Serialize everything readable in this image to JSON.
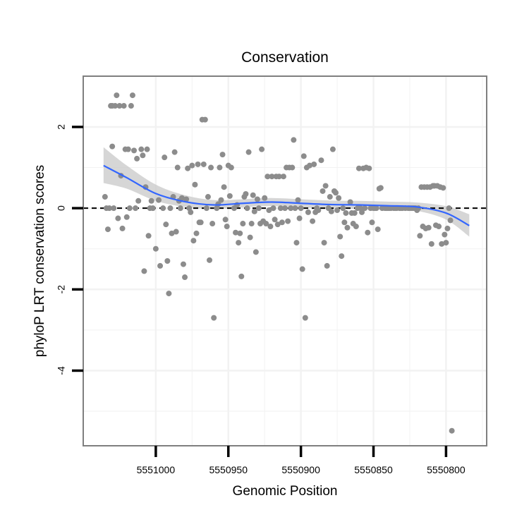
{
  "chart_data": {
    "type": "scatter",
    "title": "Conservation",
    "xlabel": "Genomic Position",
    "ylabel": "phyloP LRT conservation scores",
    "x_reversed": true,
    "xlim": [
      5551050,
      5550772
    ],
    "ylim": [
      -5.85,
      3.25
    ],
    "x_ticks": [
      5551000,
      5550950,
      5550900,
      5550850,
      5550800
    ],
    "x_tick_labels": [
      "5551000",
      "5550950",
      "5550900",
      "5550850",
      "5550800"
    ],
    "y_ticks": [
      2,
      0,
      -2,
      -4
    ],
    "y_tick_labels": [
      "2",
      "0",
      "-2",
      "-4"
    ],
    "reference_line": {
      "y": 0,
      "style": "dashed"
    },
    "colors": {
      "points": "#8c8c8c",
      "smooth_line": "#3366ff",
      "confidence_band": "#c8c8c8",
      "panel_border": "#7f7f7f",
      "grid": "#f2f2f2"
    },
    "smooth": {
      "x": [
        5551036,
        5551020,
        5551000,
        5550980,
        5550960,
        5550940,
        5550920,
        5550900,
        5550880,
        5550860,
        5550840,
        5550820,
        5550800,
        5550784
      ],
      "y": [
        1.05,
        0.75,
        0.36,
        0.16,
        0.08,
        0.12,
        0.15,
        0.12,
        0.09,
        0.08,
        0.06,
        0.03,
        -0.12,
        -0.43
      ],
      "lower": [
        0.62,
        0.48,
        0.18,
        0.03,
        -0.02,
        0.02,
        0.05,
        0.02,
        -0.01,
        -0.02,
        -0.04,
        -0.07,
        -0.28,
        -0.7
      ],
      "upper": [
        1.5,
        1.05,
        0.58,
        0.32,
        0.2,
        0.22,
        0.25,
        0.22,
        0.19,
        0.18,
        0.16,
        0.14,
        0.05,
        -0.15
      ]
    },
    "points": [
      [
        5551035,
        0.28
      ],
      [
        5551034,
        0.0
      ],
      [
        5551033,
        -0.52
      ],
      [
        5551032,
        0.0
      ],
      [
        5551031,
        2.52
      ],
      [
        5551030,
        1.52
      ],
      [
        5551030,
        2.52
      ],
      [
        5551029,
        0.0
      ],
      [
        5551028,
        2.52
      ],
      [
        5551027,
        2.78
      ],
      [
        5551026,
        -0.25
      ],
      [
        5551025,
        2.52
      ],
      [
        5551024,
        0.8
      ],
      [
        5551023,
        -0.5
      ],
      [
        5551022,
        2.52
      ],
      [
        5551021,
        1.45
      ],
      [
        5551020,
        -0.22
      ],
      [
        5551019,
        1.45
      ],
      [
        5551018,
        0.0
      ],
      [
        5551017,
        2.52
      ],
      [
        5551016,
        2.78
      ],
      [
        5551015,
        1.42
      ],
      [
        5551014,
        0.0
      ],
      [
        5551013,
        1.22
      ],
      [
        5551012,
        0.18
      ],
      [
        5551010,
        1.45
      ],
      [
        5551009,
        1.3
      ],
      [
        5551008,
        -1.55
      ],
      [
        5551007,
        0.52
      ],
      [
        5551006,
        1.45
      ],
      [
        5551005,
        -0.68
      ],
      [
        5551004,
        0.0
      ],
      [
        5551003,
        0.18
      ],
      [
        5551002,
        0.0
      ],
      [
        5551000,
        -1.0
      ],
      [
        5550998,
        0.2
      ],
      [
        5550997,
        -1.42
      ],
      [
        5550995,
        0.0
      ],
      [
        5550994,
        1.25
      ],
      [
        5550993,
        -0.4
      ],
      [
        5550992,
        -1.3
      ],
      [
        5550991,
        -2.1
      ],
      [
        5550990,
        0.0
      ],
      [
        5550989,
        -0.62
      ],
      [
        5550988,
        0.28
      ],
      [
        5550987,
        1.38
      ],
      [
        5550986,
        -0.58
      ],
      [
        5550985,
        1.0
      ],
      [
        5550984,
        0.18
      ],
      [
        5550983,
        0.0
      ],
      [
        5550982,
        0.25
      ],
      [
        5550981,
        -1.38
      ],
      [
        5550980,
        -1.7
      ],
      [
        5550979,
        0.22
      ],
      [
        5550978,
        0.98
      ],
      [
        5550977,
        0.0
      ],
      [
        5550976,
        -0.1
      ],
      [
        5550975,
        1.05
      ],
      [
        5550974,
        -0.8
      ],
      [
        5550973,
        0.58
      ],
      [
        5550972,
        -0.62
      ],
      [
        5550971,
        1.08
      ],
      [
        5550970,
        -0.35
      ],
      [
        5550969,
        -0.35
      ],
      [
        5550968,
        2.18
      ],
      [
        5550967,
        1.08
      ],
      [
        5550966,
        2.18
      ],
      [
        5550965,
        0.0
      ],
      [
        5550964,
        0.28
      ],
      [
        5550963,
        -1.28
      ],
      [
        5550962,
        1.0
      ],
      [
        5550961,
        -0.38
      ],
      [
        5550960,
        -2.7
      ],
      [
        5550958,
        0.0
      ],
      [
        5550957,
        0.1
      ],
      [
        5550956,
        1.0
      ],
      [
        5550955,
        0.2
      ],
      [
        5550954,
        1.32
      ],
      [
        5550953,
        0.52
      ],
      [
        5550952,
        -0.28
      ],
      [
        5550951,
        -0.45
      ],
      [
        5550950,
        1.05
      ],
      [
        5550949,
        0.3
      ],
      [
        5550948,
        1.0
      ],
      [
        5550946,
        0.0
      ],
      [
        5550945,
        -0.6
      ],
      [
        5550944,
        0.08
      ],
      [
        5550943,
        -0.85
      ],
      [
        5550942,
        -0.62
      ],
      [
        5550941,
        -1.68
      ],
      [
        5550940,
        -0.38
      ],
      [
        5550939,
        0.28
      ],
      [
        5550938,
        0.35
      ],
      [
        5550937,
        0.0
      ],
      [
        5550936,
        1.38
      ],
      [
        5550935,
        -0.72
      ],
      [
        5550934,
        -0.38
      ],
      [
        5550933,
        0.32
      ],
      [
        5550932,
        -0.08
      ],
      [
        5550931,
        -1.08
      ],
      [
        5550930,
        0.22
      ],
      [
        5550929,
        0.0
      ],
      [
        5550928,
        -0.38
      ],
      [
        5550927,
        1.45
      ],
      [
        5550926,
        -0.32
      ],
      [
        5550925,
        0.25
      ],
      [
        5550924,
        -0.38
      ],
      [
        5550923,
        0.78
      ],
      [
        5550922,
        -0.05
      ],
      [
        5550921,
        -0.45
      ],
      [
        5550920,
        0.78
      ],
      [
        5550919,
        0.0
      ],
      [
        5550918,
        -0.28
      ],
      [
        5550917,
        0.78
      ],
      [
        5550916,
        -0.4
      ],
      [
        5550915,
        0.78
      ],
      [
        5550914,
        0.0
      ],
      [
        5550913,
        -0.35
      ],
      [
        5550912,
        0.78
      ],
      [
        5550911,
        0.0
      ],
      [
        5550910,
        1.0
      ],
      [
        5550909,
        -0.32
      ],
      [
        5550908,
        1.0
      ],
      [
        5550907,
        0.0
      ],
      [
        5550906,
        1.0
      ],
      [
        5550905,
        1.68
      ],
      [
        5550904,
        0.0
      ],
      [
        5550903,
        -0.85
      ],
      [
        5550902,
        0.2
      ],
      [
        5550901,
        -0.25
      ],
      [
        5550900,
        0.0
      ],
      [
        5550899,
        -1.5
      ],
      [
        5550898,
        1.28
      ],
      [
        5550897,
        -2.7
      ],
      [
        5550896,
        1.0
      ],
      [
        5550895,
        -0.1
      ],
      [
        5550894,
        1.05
      ],
      [
        5550892,
        -0.32
      ],
      [
        5550891,
        1.08
      ],
      [
        5550890,
        -0.1
      ],
      [
        5550889,
        0.0
      ],
      [
        5550888,
        -0.05
      ],
      [
        5550886,
        1.18
      ],
      [
        5550885,
        0.42
      ],
      [
        5550884,
        -0.85
      ],
      [
        5550883,
        0.55
      ],
      [
        5550882,
        -1.42
      ],
      [
        5550881,
        0.0
      ],
      [
        5550880,
        0.28
      ],
      [
        5550879,
        -0.08
      ],
      [
        5550878,
        1.45
      ],
      [
        5550877,
        0.42
      ],
      [
        5550876,
        0.38
      ],
      [
        5550875,
        -0.05
      ],
      [
        5550874,
        0.25
      ],
      [
        5550873,
        -0.7
      ],
      [
        5550872,
        -1.18
      ],
      [
        5550871,
        0.0
      ],
      [
        5550870,
        -0.35
      ],
      [
        5550869,
        -0.12
      ],
      [
        5550868,
        -0.48
      ],
      [
        5550866,
        0.15
      ],
      [
        5550865,
        -0.12
      ],
      [
        5550864,
        -0.38
      ],
      [
        5550863,
        -0.12
      ],
      [
        5550862,
        -0.45
      ],
      [
        5550861,
        0.0
      ],
      [
        5550860,
        0.98
      ],
      [
        5550859,
        0.0
      ],
      [
        5550858,
        -0.1
      ],
      [
        5550857,
        0.98
      ],
      [
        5550856,
        0.0
      ],
      [
        5550855,
        1.0
      ],
      [
        5550854,
        -0.6
      ],
      [
        5550853,
        0.98
      ],
      [
        5550852,
        0.0
      ],
      [
        5550851,
        -0.35
      ],
      [
        5550850,
        0.0
      ],
      [
        5550849,
        0.0
      ],
      [
        5550848,
        0.0
      ],
      [
        5550847,
        -0.52
      ],
      [
        5550846,
        0.48
      ],
      [
        5550845,
        0.5
      ],
      [
        5550844,
        0.0
      ],
      [
        5550842,
        0.0
      ],
      [
        5550841,
        0.0
      ],
      [
        5550840,
        0.0
      ],
      [
        5550839,
        0.0
      ],
      [
        5550838,
        0.0
      ],
      [
        5550836,
        0.0
      ],
      [
        5550835,
        0.0
      ],
      [
        5550834,
        0.0
      ],
      [
        5550832,
        0.0
      ],
      [
        5550831,
        0.0
      ],
      [
        5550830,
        0.0
      ],
      [
        5550828,
        0.0
      ],
      [
        5550826,
        0.0
      ],
      [
        5550825,
        0.0
      ],
      [
        5550824,
        0.0
      ],
      [
        5550823,
        0.0
      ],
      [
        5550822,
        0.0
      ],
      [
        5550821,
        0.0
      ],
      [
        5550820,
        -0.05
      ],
      [
        5550819,
        0.0
      ],
      [
        5550818,
        -0.68
      ],
      [
        5550817,
        0.52
      ],
      [
        5550816,
        -0.45
      ],
      [
        5550815,
        0.52
      ],
      [
        5550814,
        -0.5
      ],
      [
        5550813,
        0.52
      ],
      [
        5550812,
        -0.48
      ],
      [
        5550811,
        0.52
      ],
      [
        5550810,
        -0.88
      ],
      [
        5550809,
        0.55
      ],
      [
        5550808,
        0.55
      ],
      [
        5550807,
        -0.42
      ],
      [
        5550806,
        0.55
      ],
      [
        5550805,
        -0.45
      ],
      [
        5550804,
        0.52
      ],
      [
        5550803,
        -0.88
      ],
      [
        5550802,
        0.5
      ],
      [
        5550801,
        -0.65
      ],
      [
        5550800,
        -0.85
      ],
      [
        5550799,
        -0.5
      ],
      [
        5550798,
        0.0
      ],
      [
        5550797,
        -0.3
      ],
      [
        5550796,
        -5.48
      ]
    ]
  }
}
